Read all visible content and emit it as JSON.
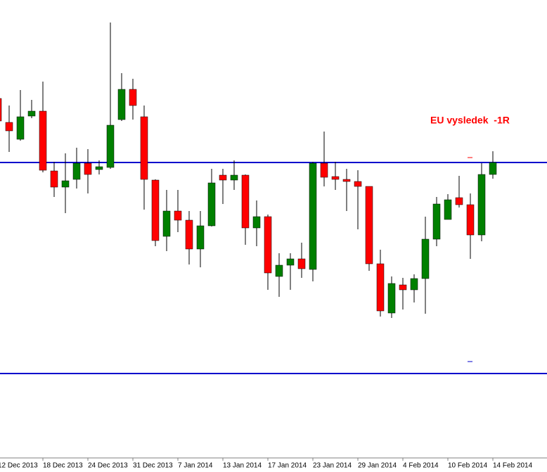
{
  "chart_data": {
    "type": "candlestick",
    "annotation": "EU vysledek  -1R",
    "categories": [
      "12 Dec 2013",
      null,
      null,
      null,
      "18 Dec 2013",
      null,
      null,
      null,
      "24 Dec 2013",
      null,
      null,
      null,
      "31 Dec 2013",
      null,
      null,
      null,
      "7 Jan 2014",
      null,
      null,
      null,
      "13 Jan 2014",
      null,
      null,
      null,
      "17 Jan 2014",
      null,
      null,
      null,
      "23 Jan 2014",
      null,
      null,
      null,
      "29 Jan 2014",
      null,
      null,
      null,
      "4 Feb 2014",
      null,
      null,
      null,
      "10 Feb 2014",
      null,
      null,
      null,
      "14 Feb 2014"
    ],
    "open": [
      510,
      476,
      452,
      485,
      492,
      407,
      384,
      395,
      418,
      409,
      412,
      480,
      523,
      484,
      394,
      314,
      350,
      337,
      296,
      329,
      401,
      394,
      401,
      326,
      342,
      257,
      273,
      282,
      267,
      418,
      399,
      395,
      392,
      385,
      275,
      205,
      245,
      238,
      254,
      310,
      338,
      369,
      359,
      316,
      402
    ],
    "high": [
      532,
      500,
      522,
      508,
      534,
      420,
      432,
      440,
      438,
      422,
      618,
      546,
      538,
      500,
      395,
      380,
      380,
      350,
      350,
      410,
      410,
      422,
      402,
      365,
      345,
      290,
      290,
      305,
      420,
      463,
      420,
      410,
      408,
      385,
      295,
      257,
      255,
      260,
      342,
      370,
      374,
      400,
      375,
      418,
      435
    ],
    "low": [
      460,
      434,
      450,
      482,
      405,
      370,
      347,
      382,
      375,
      402,
      410,
      478,
      480,
      352,
      300,
      293,
      320,
      274,
      270,
      328,
      360,
      380,
      302,
      300,
      238,
      228,
      238,
      255,
      250,
      385,
      380,
      350,
      324,
      265,
      200,
      198,
      210,
      220,
      204,
      300,
      338,
      355,
      282,
      307,
      396
    ],
    "close": [
      478,
      464,
      484,
      492,
      408,
      384,
      393,
      418,
      402,
      413,
      472,
      523,
      500,
      395,
      308,
      350,
      337,
      296,
      329,
      390,
      394,
      401,
      326,
      342,
      262,
      273,
      282,
      268,
      418,
      398,
      395,
      392,
      385,
      275,
      208,
      247,
      238,
      254,
      310,
      360,
      366,
      359,
      316,
      402,
      419
    ],
    "levels": [
      419,
      119
    ],
    "up_color": "#008000",
    "down_color": "#ff0000",
    "level_color": "#0000cc",
    "ylim": [
      0,
      650
    ]
  }
}
